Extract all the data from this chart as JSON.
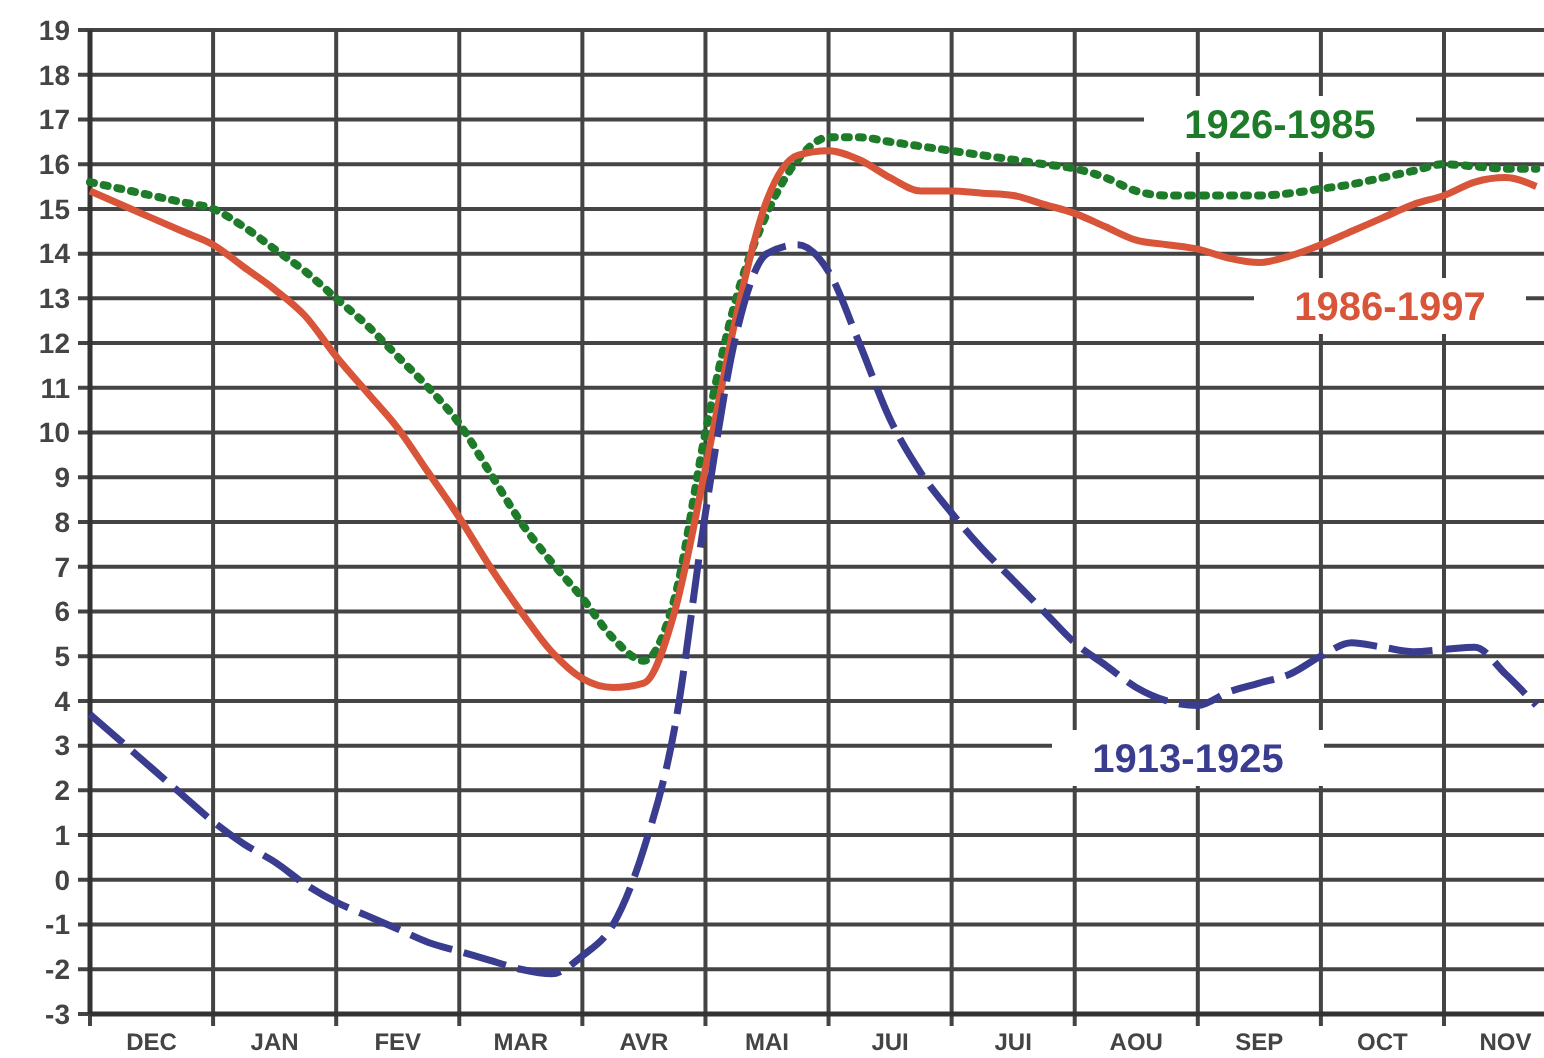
{
  "chart_data": {
    "type": "line",
    "categories": [
      null,
      null,
      "DEC",
      null,
      null,
      null,
      "JAN",
      null,
      null,
      null,
      "FEV",
      null,
      null,
      null,
      "MAR",
      null,
      null,
      null,
      "AVR",
      null,
      null,
      null,
      "MAI",
      null,
      null,
      null,
      "JUI",
      null,
      null,
      null,
      "JUI",
      null,
      null,
      null,
      "AOU",
      null,
      null,
      null,
      "SEP",
      null,
      null,
      null,
      "OCT",
      null,
      null,
      null,
      "NOV",
      null
    ],
    "ylim": [
      -3,
      19
    ],
    "yticks": [
      -3,
      -2,
      -1,
      0,
      1,
      2,
      3,
      4,
      5,
      6,
      7,
      8,
      9,
      10,
      11,
      12,
      13,
      14,
      15,
      16,
      17,
      18,
      19
    ],
    "grid": true,
    "series": [
      {
        "name": "1926-1985",
        "color": "#1e7b2a",
        "line_style": "dotted",
        "values": [
          15.6,
          15.45,
          15.3,
          15.15,
          15.0,
          14.6,
          14.1,
          13.6,
          13.0,
          12.4,
          11.7,
          11.0,
          10.2,
          9.1,
          8.0,
          7.1,
          6.3,
          5.4,
          4.9,
          6.3,
          10.0,
          13.0,
          14.9,
          16.1,
          16.6,
          16.6,
          16.5,
          16.4,
          16.3,
          16.2,
          16.1,
          16.0,
          15.9,
          15.7,
          15.4,
          15.3,
          15.3,
          15.3,
          15.3,
          15.35,
          15.45,
          15.55,
          15.7,
          15.85,
          16.0,
          15.95,
          15.9,
          15.9
        ]
      },
      {
        "name": "1986-1997",
        "color": "#d9553a",
        "line_style": "solid",
        "values": [
          15.4,
          15.1,
          14.8,
          14.5,
          14.2,
          13.7,
          13.2,
          12.6,
          11.7,
          10.9,
          10.1,
          9.1,
          8.1,
          7.0,
          6.0,
          5.1,
          4.5,
          4.3,
          4.4,
          6.0,
          9.2,
          12.6,
          15.2,
          16.2,
          16.3,
          16.1,
          15.7,
          15.4,
          15.4,
          15.35,
          15.3,
          15.1,
          14.9,
          14.6,
          14.3,
          14.2,
          14.1,
          13.9,
          13.8,
          13.95,
          14.2,
          14.5,
          14.8,
          15.1,
          15.3,
          15.6,
          15.7,
          15.5
        ]
      },
      {
        "name": "1913-1925",
        "color": "#3a3d8f",
        "line_style": "dashed",
        "values": [
          3.7,
          3.1,
          2.5,
          1.9,
          1.3,
          0.8,
          0.4,
          -0.1,
          -0.5,
          -0.8,
          -1.1,
          -1.4,
          -1.6,
          -1.8,
          -2.0,
          -2.1,
          -1.7,
          -1.0,
          0.7,
          3.4,
          8.2,
          12.2,
          14.0,
          14.2,
          13.6,
          12.0,
          10.3,
          9.1,
          8.2,
          7.4,
          6.7,
          6.0,
          5.3,
          4.8,
          4.3,
          4.0,
          3.9,
          4.2,
          4.4,
          4.6,
          5.0,
          5.3,
          5.2,
          5.1,
          5.15,
          5.2,
          4.6,
          3.9
        ]
      }
    ]
  }
}
